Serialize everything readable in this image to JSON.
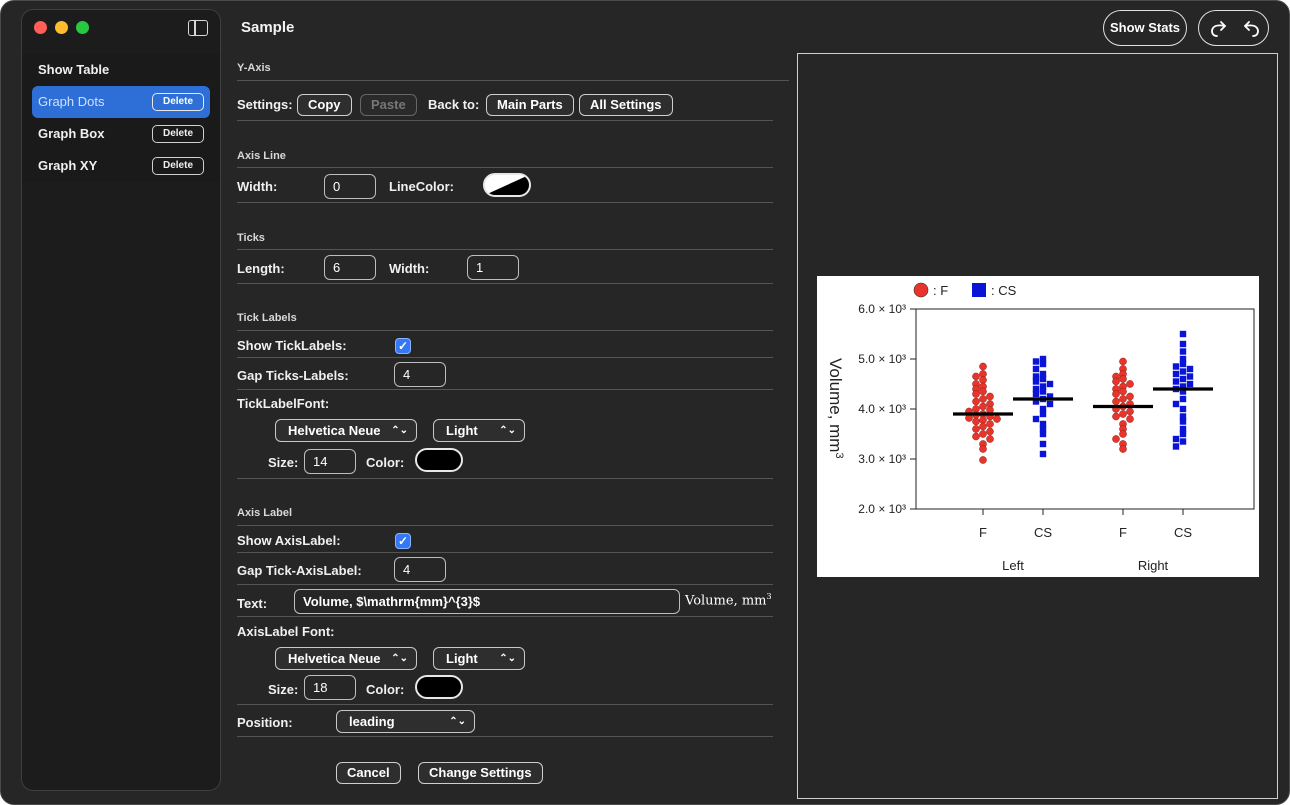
{
  "window": {
    "title": "Sample"
  },
  "sidebar": {
    "header": "Show Table",
    "items": [
      {
        "label": "Graph Dots",
        "delete": "Delete",
        "active": true
      },
      {
        "label": "Graph Box",
        "delete": "Delete",
        "active": false
      },
      {
        "label": "Graph XY",
        "delete": "Delete",
        "active": false
      }
    ]
  },
  "toolbar": {
    "show_stats": "Show Stats",
    "redo_icon": "redo-icon",
    "undo_icon": "undo-icon"
  },
  "panel": {
    "section_title": "Y-Axis",
    "settings_label": "Settings:",
    "copy": "Copy",
    "paste": "Paste",
    "back_to": "Back to:",
    "main_parts": "Main Parts",
    "all_settings": "All Settings",
    "axis_line": {
      "title": "Axis Line",
      "width_label": "Width:",
      "width_value": "0",
      "linecolor_label": "LineColor:"
    },
    "ticks": {
      "title": "Ticks",
      "length_label": "Length:",
      "length_value": "6",
      "width_label": "Width:",
      "width_value": "1"
    },
    "tick_labels": {
      "title": "Tick Labels",
      "show_label": "Show TickLabels:",
      "show_checked": true,
      "gap_label": "Gap Ticks-Labels:",
      "gap_value": "4",
      "font_label": "TickLabelFont:",
      "font_family": "Helvetica Neue",
      "font_weight": "Light",
      "size_label": "Size:",
      "size_value": "14",
      "color_label": "Color:"
    },
    "axis_label": {
      "title": "Axis Label",
      "show_label": "Show AxisLabel:",
      "show_checked": true,
      "gap_label": "Gap Tick-AxisLabel:",
      "gap_value": "4",
      "text_label": "Text:",
      "text_value": "Volume, $\\mathrm{mm}^{3}$",
      "preview_text": "Volume, mm",
      "preview_sup": "3",
      "font_label": "AxisLabel Font:",
      "font_family": "Helvetica Neue",
      "font_weight": "Light",
      "size_label": "Size:",
      "size_value": "18",
      "color_label": "Color:",
      "position_label": "Position:",
      "position_value": "leading"
    },
    "cancel": "Cancel",
    "change_settings": "Change Settings"
  },
  "chart_data": {
    "type": "scatter",
    "legend": [
      {
        "name": ": F",
        "color": "#e8352b",
        "marker": "circle"
      },
      {
        "name": ": CS",
        "color": "#0a14d6",
        "marker": "square"
      }
    ],
    "ylabel": "Volume, mm3",
    "ylim": [
      2000,
      6000
    ],
    "yticks": [
      "2.0 × 10³",
      "3.0 × 10³",
      "4.0 × 10³",
      "5.0 × 10³",
      "6.0 × 10³"
    ],
    "ytick_values": [
      2000,
      3000,
      4000,
      5000,
      6000
    ],
    "categories": [
      "F",
      "CS",
      "F",
      "CS"
    ],
    "groups": [
      "Left",
      "Right"
    ],
    "series": [
      {
        "name": "Left F",
        "color": "#e8352b",
        "marker": "circle",
        "mean": 3900,
        "values": [
          4850,
          4700,
          4650,
          4580,
          4500,
          4450,
          4400,
          4350,
          4300,
          4250,
          4200,
          4150,
          4100,
          4050,
          4000,
          3980,
          3950,
          3900,
          3880,
          3850,
          3820,
          3800,
          3780,
          3750,
          3700,
          3650,
          3600,
          3550,
          3500,
          3450,
          3400,
          3300,
          3200,
          2980
        ]
      },
      {
        "name": "Left CS",
        "color": "#0a14d6",
        "marker": "square",
        "mean": 4200,
        "values": [
          5000,
          4950,
          4900,
          4800,
          4700,
          4650,
          4600,
          4550,
          4500,
          4450,
          4400,
          4350,
          4300,
          4250,
          4200,
          4150,
          4100,
          4000,
          3900,
          3800,
          3700,
          3600,
          3500,
          3300,
          3100
        ]
      },
      {
        "name": "Right F",
        "color": "#e8352b",
        "marker": "circle",
        "mean": 4050,
        "values": [
          4950,
          4800,
          4700,
          4650,
          4600,
          4550,
          4500,
          4450,
          4400,
          4350,
          4300,
          4250,
          4200,
          4150,
          4100,
          4050,
          4000,
          3950,
          3900,
          3850,
          3800,
          3700,
          3600,
          3500,
          3400,
          3300,
          3200
        ]
      },
      {
        "name": "Right CS",
        "color": "#0a14d6",
        "marker": "square",
        "mean": 4400,
        "values": [
          5500,
          5300,
          5150,
          5000,
          4900,
          4850,
          4800,
          4750,
          4700,
          4650,
          4600,
          4550,
          4500,
          4450,
          4400,
          4350,
          4200,
          4100,
          4000,
          3850,
          3750,
          3600,
          3500,
          3400,
          3350,
          3250
        ]
      }
    ]
  }
}
